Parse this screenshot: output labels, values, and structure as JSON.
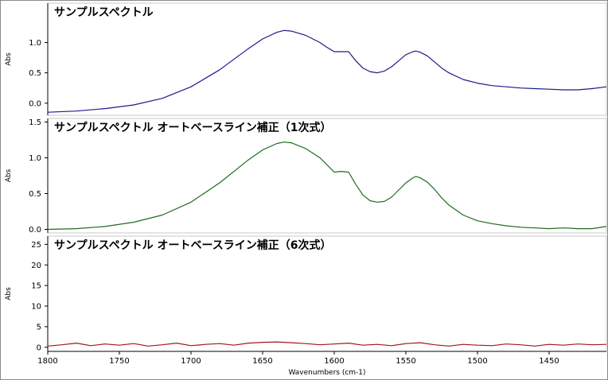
{
  "chart_data": [
    {
      "type": "line",
      "title": "サンプルスペクトル",
      "ylabel": "Abs",
      "xlabel": "",
      "xlim": [
        1800,
        1410
      ],
      "ylim": [
        -0.2,
        1.65
      ],
      "yticks": [
        "0.0",
        "0.5",
        "1.0"
      ],
      "grid": false,
      "color": "#1a1a8c",
      "series": [
        {
          "x": [
            1800,
            1780,
            1760,
            1740,
            1720,
            1700,
            1680,
            1660,
            1650,
            1640,
            1635,
            1630,
            1620,
            1610,
            1605,
            1600,
            1595,
            1590,
            1585,
            1580,
            1575,
            1570,
            1565,
            1560,
            1555,
            1550,
            1545,
            1543,
            1540,
            1535,
            1530,
            1525,
            1520,
            1510,
            1500,
            1490,
            1480,
            1470,
            1460,
            1450,
            1440,
            1430,
            1420,
            1410
          ],
          "y": [
            -0.15,
            -0.13,
            -0.09,
            -0.03,
            0.08,
            0.27,
            0.55,
            0.9,
            1.06,
            1.17,
            1.2,
            1.19,
            1.12,
            1.0,
            0.92,
            0.85,
            0.85,
            0.85,
            0.7,
            0.58,
            0.52,
            0.5,
            0.53,
            0.6,
            0.7,
            0.8,
            0.85,
            0.86,
            0.84,
            0.78,
            0.68,
            0.58,
            0.5,
            0.39,
            0.33,
            0.29,
            0.27,
            0.25,
            0.24,
            0.23,
            0.22,
            0.22,
            0.24,
            0.27
          ]
        }
      ]
    },
    {
      "type": "line",
      "title": "サンプルスペクトル オートベースライン補正（1次式）",
      "ylabel": "Abs",
      "xlabel": "",
      "xlim": [
        1800,
        1410
      ],
      "ylim": [
        -0.05,
        1.55
      ],
      "yticks": [
        "0.0",
        "0.5",
        "1.0",
        "1.5"
      ],
      "grid": false,
      "color": "#1f6b1f",
      "series": [
        {
          "x": [
            1800,
            1780,
            1760,
            1740,
            1720,
            1700,
            1680,
            1660,
            1650,
            1640,
            1635,
            1630,
            1620,
            1610,
            1605,
            1600,
            1595,
            1590,
            1585,
            1580,
            1575,
            1570,
            1565,
            1560,
            1555,
            1550,
            1545,
            1543,
            1540,
            1535,
            1530,
            1525,
            1520,
            1510,
            1500,
            1490,
            1480,
            1470,
            1460,
            1450,
            1440,
            1430,
            1420,
            1410
          ],
          "y": [
            0.0,
            0.01,
            0.04,
            0.1,
            0.2,
            0.38,
            0.65,
            0.97,
            1.11,
            1.2,
            1.22,
            1.21,
            1.13,
            1.0,
            0.9,
            0.8,
            0.81,
            0.8,
            0.63,
            0.48,
            0.4,
            0.38,
            0.39,
            0.45,
            0.55,
            0.65,
            0.72,
            0.74,
            0.72,
            0.66,
            0.56,
            0.44,
            0.34,
            0.2,
            0.12,
            0.08,
            0.05,
            0.03,
            0.02,
            0.01,
            0.02,
            0.01,
            0.01,
            0.04
          ]
        }
      ]
    },
    {
      "type": "line",
      "title": "サンプルスペクトル オートベースライン補正（6次式）",
      "ylabel": "Abs",
      "xlabel": "Wavenumbers (cm-1)",
      "xlim": [
        1800,
        1410
      ],
      "ylim": [
        -1,
        27
      ],
      "yticks": [
        "0",
        "5",
        "10",
        "15",
        "20",
        "25"
      ],
      "xticks": [
        "1800",
        "1750",
        "1700",
        "1650",
        "1600",
        "1550",
        "1500",
        "1450"
      ],
      "grid": false,
      "color": "#a01818",
      "series": [
        {
          "x": [
            1800,
            1790,
            1780,
            1770,
            1760,
            1750,
            1740,
            1730,
            1720,
            1710,
            1700,
            1690,
            1680,
            1670,
            1660,
            1650,
            1640,
            1630,
            1620,
            1610,
            1600,
            1590,
            1580,
            1570,
            1560,
            1550,
            1540,
            1530,
            1520,
            1510,
            1500,
            1490,
            1480,
            1470,
            1460,
            1450,
            1440,
            1430,
            1420,
            1410
          ],
          "y": [
            0.3,
            0.6,
            1.0,
            0.4,
            0.8,
            0.5,
            0.9,
            0.3,
            0.6,
            1.0,
            0.4,
            0.7,
            0.9,
            0.5,
            1.0,
            1.2,
            1.3,
            1.1,
            0.9,
            0.6,
            0.8,
            1.0,
            0.5,
            0.7,
            0.4,
            0.9,
            1.1,
            0.6,
            0.3,
            0.7,
            0.5,
            0.4,
            0.8,
            0.6,
            0.3,
            0.7,
            0.5,
            0.8,
            0.6,
            0.7
          ]
        }
      ]
    }
  ]
}
